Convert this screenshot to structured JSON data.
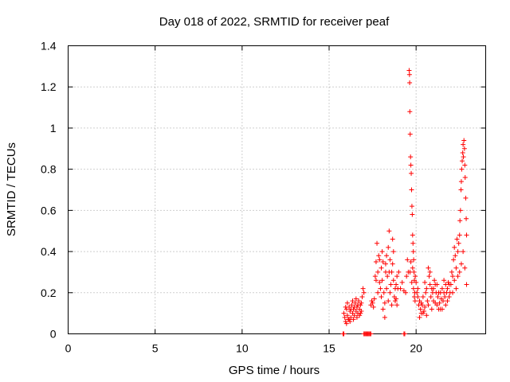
{
  "chart_data": {
    "type": "scatter",
    "title": "Day 018 of 2022, SRMTID for receiver peaf",
    "xlabel": "GPS time / hours",
    "ylabel": "SRMTID / TECUs",
    "xlim": [
      0,
      24
    ],
    "ylim": [
      0,
      1.4
    ],
    "xticks": [
      0,
      5,
      10,
      15,
      20
    ],
    "xtick_labels": [
      "0",
      "5",
      "10",
      "15",
      "20"
    ],
    "yticks": [
      0,
      0.2,
      0.4,
      0.6,
      0.8,
      1.0,
      1.2,
      1.4
    ],
    "ytick_labels": [
      "0",
      "0.2",
      "0.4",
      "0.6",
      "0.8",
      "1",
      "1.2",
      "1.4"
    ],
    "grid": true,
    "marker": "+",
    "color": "#ff0000",
    "series": [
      {
        "name": "SRMTID",
        "points": [
          [
            15.8,
            0.0
          ],
          [
            15.85,
            0.0
          ],
          [
            17.0,
            0.0
          ],
          [
            17.05,
            0.0
          ],
          [
            17.1,
            0.0
          ],
          [
            17.15,
            0.0
          ],
          [
            17.2,
            0.0
          ],
          [
            17.25,
            0.0
          ],
          [
            17.3,
            0.0
          ],
          [
            17.35,
            0.0
          ],
          [
            17.4,
            0.0
          ],
          [
            19.3,
            0.0
          ],
          [
            19.35,
            0.0
          ],
          [
            15.85,
            0.1
          ],
          [
            15.9,
            0.08
          ],
          [
            15.95,
            0.06
          ],
          [
            16.0,
            0.12
          ],
          [
            16.05,
            0.09
          ],
          [
            16.1,
            0.07
          ],
          [
            16.15,
            0.13
          ],
          [
            16.2,
            0.11
          ],
          [
            16.25,
            0.08
          ],
          [
            16.3,
            0.14
          ],
          [
            16.35,
            0.1
          ],
          [
            16.4,
            0.12
          ],
          [
            16.45,
            0.09
          ],
          [
            16.5,
            0.15
          ],
          [
            16.55,
            0.11
          ],
          [
            16.6,
            0.13
          ],
          [
            16.65,
            0.1
          ],
          [
            16.7,
            0.16
          ],
          [
            16.75,
            0.12
          ],
          [
            16.8,
            0.14
          ],
          [
            16.85,
            0.11
          ],
          [
            16.9,
            0.18
          ],
          [
            16.95,
            0.22
          ],
          [
            17.0,
            0.2
          ],
          [
            15.95,
            0.13
          ],
          [
            16.05,
            0.15
          ],
          [
            16.15,
            0.07
          ],
          [
            16.25,
            0.12
          ],
          [
            16.35,
            0.16
          ],
          [
            16.45,
            0.13
          ],
          [
            16.55,
            0.17
          ],
          [
            16.65,
            0.14
          ],
          [
            16.75,
            0.09
          ],
          [
            16.85,
            0.15
          ],
          [
            16.0,
            0.05
          ],
          [
            16.2,
            0.06
          ],
          [
            16.4,
            0.07
          ],
          [
            16.6,
            0.08
          ],
          [
            16.8,
            0.1
          ],
          [
            17.4,
            0.14
          ],
          [
            17.45,
            0.16
          ],
          [
            17.5,
            0.15
          ],
          [
            17.55,
            0.13
          ],
          [
            17.6,
            0.17
          ],
          [
            17.65,
            0.28
          ],
          [
            17.7,
            0.35
          ],
          [
            17.75,
            0.44
          ],
          [
            17.8,
            0.3
          ],
          [
            17.85,
            0.38
          ],
          [
            17.9,
            0.25
          ],
          [
            17.95,
            0.22
          ],
          [
            18.0,
            0.32
          ],
          [
            18.05,
            0.4
          ],
          [
            18.1,
            0.35
          ],
          [
            18.15,
            0.2
          ],
          [
            18.2,
            0.15
          ],
          [
            18.25,
            0.3
          ],
          [
            18.3,
            0.38
          ],
          [
            18.35,
            0.28
          ],
          [
            18.4,
            0.42
          ],
          [
            18.45,
            0.5
          ],
          [
            18.5,
            0.36
          ],
          [
            18.55,
            0.24
          ],
          [
            18.6,
            0.3
          ],
          [
            18.65,
            0.46
          ],
          [
            18.7,
            0.4
          ],
          [
            18.75,
            0.18
          ],
          [
            18.8,
            0.16
          ],
          [
            18.85,
            0.24
          ],
          [
            18.9,
            0.28
          ],
          [
            18.95,
            0.22
          ],
          [
            19.0,
            0.3
          ],
          [
            17.7,
            0.26
          ],
          [
            17.8,
            0.2
          ],
          [
            17.9,
            0.36
          ],
          [
            18.0,
            0.18
          ],
          [
            18.1,
            0.12
          ],
          [
            18.2,
            0.08
          ],
          [
            18.3,
            0.22
          ],
          [
            18.4,
            0.16
          ],
          [
            18.5,
            0.2
          ],
          [
            18.6,
            0.14
          ],
          [
            18.7,
            0.26
          ],
          [
            18.8,
            0.22
          ],
          [
            18.9,
            0.14
          ],
          [
            18.05,
            0.26
          ],
          [
            18.25,
            0.34
          ],
          [
            18.45,
            0.3
          ],
          [
            18.65,
            0.34
          ],
          [
            18.85,
            0.17
          ],
          [
            19.1,
            0.22
          ],
          [
            19.2,
            0.25
          ],
          [
            19.3,
            0.21
          ],
          [
            19.4,
            0.2
          ],
          [
            19.45,
            0.28
          ],
          [
            19.5,
            0.36
          ],
          [
            19.55,
            0.3
          ],
          [
            19.6,
            1.28
          ],
          [
            19.62,
            1.26
          ],
          [
            19.63,
            1.22
          ],
          [
            19.64,
            1.08
          ],
          [
            19.66,
            0.97
          ],
          [
            19.68,
            0.86
          ],
          [
            19.7,
            0.82
          ],
          [
            19.72,
            0.78
          ],
          [
            19.74,
            0.7
          ],
          [
            19.76,
            0.62
          ],
          [
            19.78,
            0.58
          ],
          [
            19.8,
            0.48
          ],
          [
            19.82,
            0.44
          ],
          [
            19.84,
            0.4
          ],
          [
            19.86,
            0.36
          ],
          [
            19.88,
            0.3
          ],
          [
            19.9,
            0.26
          ],
          [
            19.92,
            0.2
          ],
          [
            19.94,
            0.16
          ],
          [
            19.65,
            0.3
          ],
          [
            19.7,
            0.35
          ],
          [
            19.75,
            0.25
          ],
          [
            19.8,
            0.32
          ],
          [
            19.85,
            0.22
          ],
          [
            19.9,
            0.18
          ],
          [
            19.95,
            0.28
          ],
          [
            20.0,
            0.25
          ],
          [
            20.05,
            0.2
          ],
          [
            20.1,
            0.18
          ],
          [
            20.15,
            0.14
          ],
          [
            20.2,
            0.16
          ],
          [
            20.25,
            0.12
          ],
          [
            20.3,
            0.1
          ],
          [
            20.35,
            0.14
          ],
          [
            20.4,
            0.18
          ],
          [
            20.45,
            0.11
          ],
          [
            20.5,
            0.13
          ],
          [
            20.55,
            0.2
          ],
          [
            20.6,
            0.22
          ],
          [
            20.65,
            0.16
          ],
          [
            20.7,
            0.32
          ],
          [
            20.75,
            0.28
          ],
          [
            20.8,
            0.24
          ],
          [
            20.85,
            0.18
          ],
          [
            20.9,
            0.22
          ],
          [
            20.95,
            0.2
          ],
          [
            21.0,
            0.16
          ],
          [
            21.05,
            0.26
          ],
          [
            21.1,
            0.24
          ],
          [
            21.15,
            0.2
          ],
          [
            21.2,
            0.14
          ],
          [
            21.25,
            0.18
          ],
          [
            21.3,
            0.12
          ],
          [
            21.35,
            0.15
          ],
          [
            21.4,
            0.2
          ],
          [
            21.45,
            0.17
          ],
          [
            21.5,
            0.22
          ],
          [
            21.55,
            0.16
          ],
          [
            21.6,
            0.2
          ],
          [
            21.65,
            0.18
          ],
          [
            21.7,
            0.14
          ],
          [
            21.75,
            0.2
          ],
          [
            21.8,
            0.22
          ],
          [
            21.85,
            0.25
          ],
          [
            21.9,
            0.24
          ],
          [
            21.95,
            0.2
          ],
          [
            20.1,
            0.22
          ],
          [
            20.2,
            0.08
          ],
          [
            20.3,
            0.15
          ],
          [
            20.4,
            0.1
          ],
          [
            20.5,
            0.25
          ],
          [
            20.6,
            0.09
          ],
          [
            20.7,
            0.14
          ],
          [
            20.8,
            0.3
          ],
          [
            20.9,
            0.12
          ],
          [
            21.0,
            0.22
          ],
          [
            21.1,
            0.15
          ],
          [
            21.2,
            0.24
          ],
          [
            21.3,
            0.2
          ],
          [
            21.4,
            0.12
          ],
          [
            21.5,
            0.12
          ],
          [
            21.6,
            0.26
          ],
          [
            21.7,
            0.24
          ],
          [
            21.8,
            0.16
          ],
          [
            21.9,
            0.18
          ],
          [
            22.0,
            0.24
          ],
          [
            22.05,
            0.3
          ],
          [
            22.1,
            0.28
          ],
          [
            22.15,
            0.36
          ],
          [
            22.2,
            0.42
          ],
          [
            22.25,
            0.38
          ],
          [
            22.3,
            0.32
          ],
          [
            22.35,
            0.46
          ],
          [
            22.4,
            0.4
          ],
          [
            22.45,
            0.44
          ],
          [
            22.5,
            0.48
          ],
          [
            22.52,
            0.55
          ],
          [
            22.55,
            0.6
          ],
          [
            22.58,
            0.7
          ],
          [
            22.6,
            0.74
          ],
          [
            22.62,
            0.8
          ],
          [
            22.65,
            0.84
          ],
          [
            22.68,
            0.88
          ],
          [
            22.7,
            0.92
          ],
          [
            22.72,
            0.86
          ],
          [
            22.75,
            0.94
          ],
          [
            22.78,
            0.9
          ],
          [
            22.8,
            0.82
          ],
          [
            22.82,
            0.76
          ],
          [
            22.85,
            0.66
          ],
          [
            22.88,
            0.56
          ],
          [
            22.9,
            0.48
          ],
          [
            22.1,
            0.2
          ],
          [
            22.2,
            0.26
          ],
          [
            22.3,
            0.22
          ],
          [
            22.4,
            0.28
          ],
          [
            22.5,
            0.3
          ],
          [
            22.6,
            0.34
          ],
          [
            22.7,
            0.4
          ],
          [
            22.8,
            0.32
          ],
          [
            22.9,
            0.24
          ]
        ]
      }
    ]
  }
}
